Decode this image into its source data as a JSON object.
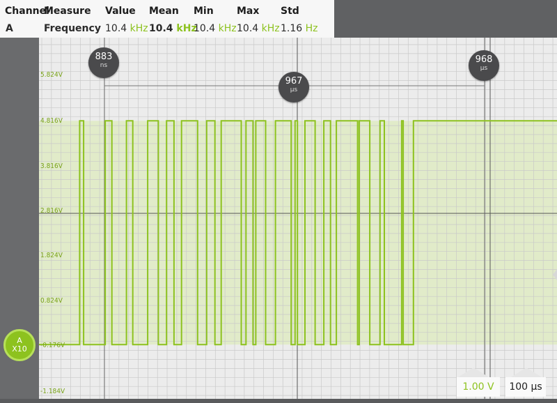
{
  "measure": {
    "headers": [
      "Channel",
      "Measure",
      "Value",
      "Mean",
      "Min",
      "Max",
      "Std"
    ],
    "row": {
      "channel": "A",
      "measure": "Frequency",
      "value": "10.4",
      "value_unit": "kHz",
      "mean": "10.4",
      "mean_unit": "kHz",
      "min": "10.4",
      "min_unit": "kHz",
      "max": "10.4",
      "max_unit": "kHz",
      "std": "1.16",
      "std_unit": "Hz"
    }
  },
  "volt_labels": [
    "5.824V",
    "4.816V",
    "3.816V",
    "2.816V",
    "1.824V",
    "0.824V",
    "-0.176V",
    "-1.184V"
  ],
  "cursors": {
    "left": {
      "value": "883",
      "unit": "ns"
    },
    "delta": {
      "value": "967",
      "unit": "µs"
    },
    "right": {
      "value": "968",
      "unit": "µs"
    }
  },
  "channel_badge": {
    "name": "A",
    "probe": "X10"
  },
  "controls": {
    "volts_per_div": "1.00 V",
    "time_per_div": "100 µs"
  },
  "colors": {
    "trace": "#8dc21f",
    "shade": "#e1ebc9",
    "panel": "#f7f7f7",
    "bubble": "#4a4a4c"
  },
  "signal": {
    "high_v": 4.82,
    "low_v": -0.18,
    "transitions_us": [
      -63,
      -53,
      2,
      19,
      56,
      72,
      110,
      137,
      158,
      177,
      196,
      237,
      260,
      281,
      297,
      348,
      360,
      378,
      385,
      410,
      435,
      475,
      485,
      491,
      510,
      536,
      558,
      575,
      590,
      644,
      648,
      675,
      701,
      712,
      756,
      760,
      786
    ]
  }
}
